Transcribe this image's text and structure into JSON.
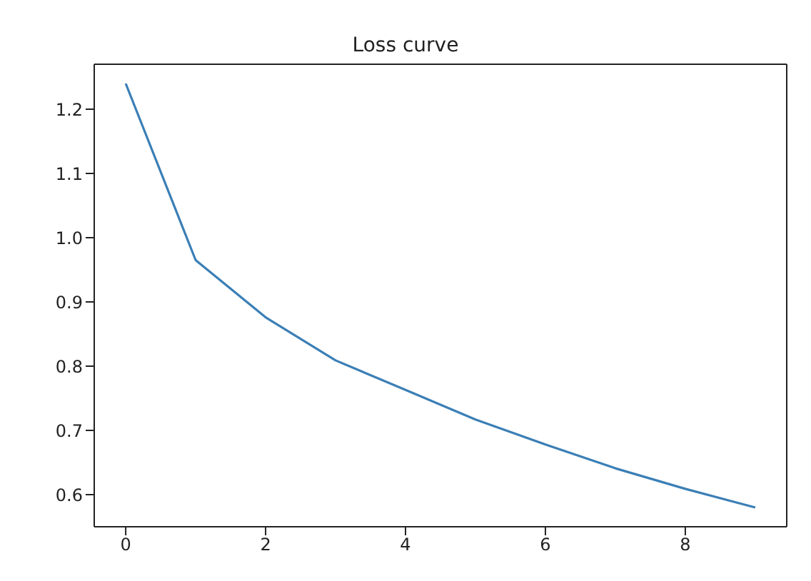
{
  "chart_data": {
    "type": "line",
    "title": "Loss curve",
    "x": [
      0,
      1,
      2,
      3,
      4,
      5,
      6,
      7,
      8,
      9
    ],
    "series": [
      {
        "color": "#3b7fb6",
        "values": [
          1.24,
          0.965,
          0.876,
          0.809,
          0.763,
          0.717,
          0.678,
          0.641,
          0.609,
          0.58
        ]
      }
    ],
    "xlim": [
      -0.45,
      9.45
    ],
    "xticks": [
      0,
      2,
      4,
      6,
      8
    ],
    "ylim": [
      0.55,
      1.27
    ],
    "yticks": [
      0.6,
      0.7,
      0.8,
      0.9,
      {
        "value": 1,
        "label": "1.0"
      },
      1.1,
      1.2
    ],
    "grid": false,
    "legend": false,
    "marker": "none",
    "line_style": "solid"
  }
}
